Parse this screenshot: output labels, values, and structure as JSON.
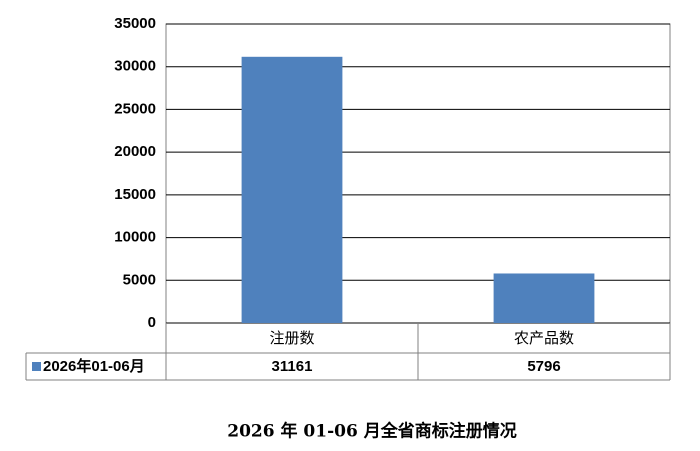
{
  "chart_data": {
    "type": "bar",
    "title": "2026 年 01-06 月全省商标注册情况",
    "categories": [
      "注册数",
      "农产品数"
    ],
    "series": [
      {
        "name": "2026年01-06月",
        "color": "#4f81bd",
        "values": [
          31161,
          5796
        ]
      }
    ],
    "ylim": [
      0,
      35000
    ],
    "yticks": [
      0,
      5000,
      10000,
      15000,
      20000,
      25000,
      30000,
      35000
    ],
    "grid": true
  }
}
